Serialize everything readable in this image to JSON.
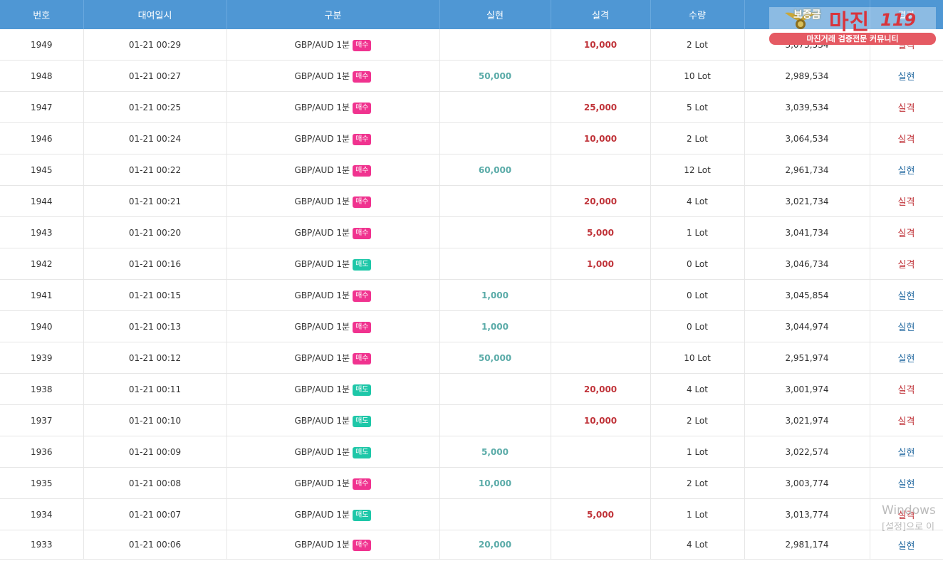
{
  "headers": [
    "번호",
    "대여일시",
    "구분",
    "실현",
    "실격",
    "수량",
    "보증금",
    "결과"
  ],
  "badge_colors": {
    "매수": "#f0338f",
    "매도": "#1ec7a8"
  },
  "rows": [
    {
      "no": "1949",
      "date": "01-21 00:29",
      "pair": "GBP/AUD 1분",
      "type": "매수",
      "win": "",
      "loss": "10,000",
      "qty": "2 Lot",
      "deposit": "3,073,534",
      "result": "실격"
    },
    {
      "no": "1948",
      "date": "01-21 00:27",
      "pair": "GBP/AUD 1분",
      "type": "매수",
      "win": "50,000",
      "loss": "",
      "qty": "10 Lot",
      "deposit": "2,989,534",
      "result": "실현"
    },
    {
      "no": "1947",
      "date": "01-21 00:25",
      "pair": "GBP/AUD 1분",
      "type": "매수",
      "win": "",
      "loss": "25,000",
      "qty": "5 Lot",
      "deposit": "3,039,534",
      "result": "실격"
    },
    {
      "no": "1946",
      "date": "01-21 00:24",
      "pair": "GBP/AUD 1분",
      "type": "매수",
      "win": "",
      "loss": "10,000",
      "qty": "2 Lot",
      "deposit": "3,064,534",
      "result": "실격"
    },
    {
      "no": "1945",
      "date": "01-21 00:22",
      "pair": "GBP/AUD 1분",
      "type": "매수",
      "win": "60,000",
      "loss": "",
      "qty": "12 Lot",
      "deposit": "2,961,734",
      "result": "실현"
    },
    {
      "no": "1944",
      "date": "01-21 00:21",
      "pair": "GBP/AUD 1분",
      "type": "매수",
      "win": "",
      "loss": "20,000",
      "qty": "4 Lot",
      "deposit": "3,021,734",
      "result": "실격"
    },
    {
      "no": "1943",
      "date": "01-21 00:20",
      "pair": "GBP/AUD 1분",
      "type": "매수",
      "win": "",
      "loss": "5,000",
      "qty": "1 Lot",
      "deposit": "3,041,734",
      "result": "실격"
    },
    {
      "no": "1942",
      "date": "01-21 00:16",
      "pair": "GBP/AUD 1분",
      "type": "매도",
      "win": "",
      "loss": "1,000",
      "qty": "0 Lot",
      "deposit": "3,046,734",
      "result": "실격"
    },
    {
      "no": "1941",
      "date": "01-21 00:15",
      "pair": "GBP/AUD 1분",
      "type": "매수",
      "win": "1,000",
      "loss": "",
      "qty": "0 Lot",
      "deposit": "3,045,854",
      "result": "실현"
    },
    {
      "no": "1940",
      "date": "01-21 00:13",
      "pair": "GBP/AUD 1분",
      "type": "매수",
      "win": "1,000",
      "loss": "",
      "qty": "0 Lot",
      "deposit": "3,044,974",
      "result": "실현"
    },
    {
      "no": "1939",
      "date": "01-21 00:12",
      "pair": "GBP/AUD 1분",
      "type": "매수",
      "win": "50,000",
      "loss": "",
      "qty": "10 Lot",
      "deposit": "2,951,974",
      "result": "실현"
    },
    {
      "no": "1938",
      "date": "01-21 00:11",
      "pair": "GBP/AUD 1분",
      "type": "매도",
      "win": "",
      "loss": "20,000",
      "qty": "4 Lot",
      "deposit": "3,001,974",
      "result": "실격"
    },
    {
      "no": "1937",
      "date": "01-21 00:10",
      "pair": "GBP/AUD 1분",
      "type": "매도",
      "win": "",
      "loss": "10,000",
      "qty": "2 Lot",
      "deposit": "3,021,974",
      "result": "실격"
    },
    {
      "no": "1936",
      "date": "01-21 00:09",
      "pair": "GBP/AUD 1분",
      "type": "매도",
      "win": "5,000",
      "loss": "",
      "qty": "1 Lot",
      "deposit": "3,022,574",
      "result": "실현"
    },
    {
      "no": "1935",
      "date": "01-21 00:08",
      "pair": "GBP/AUD 1분",
      "type": "매수",
      "win": "10,000",
      "loss": "",
      "qty": "2 Lot",
      "deposit": "3,003,774",
      "result": "실현"
    },
    {
      "no": "1934",
      "date": "01-21 00:07",
      "pair": "GBP/AUD 1분",
      "type": "매도",
      "win": "",
      "loss": "5,000",
      "qty": "1 Lot",
      "deposit": "3,013,774",
      "result": "실격"
    },
    {
      "no": "1933",
      "date": "01-21 00:06",
      "pair": "GBP/AUD 1분",
      "type": "매수",
      "win": "20,000",
      "loss": "",
      "qty": "4 Lot",
      "deposit": "2,981,174",
      "result": "실현"
    }
  ],
  "logo": {
    "badge": "보증금",
    "main": "마진",
    "number": "119",
    "tagline": "마진거래 검증전문 커뮤니티"
  },
  "watermark": {
    "line1": "Windows",
    "line2": "[설정]으로 이"
  }
}
